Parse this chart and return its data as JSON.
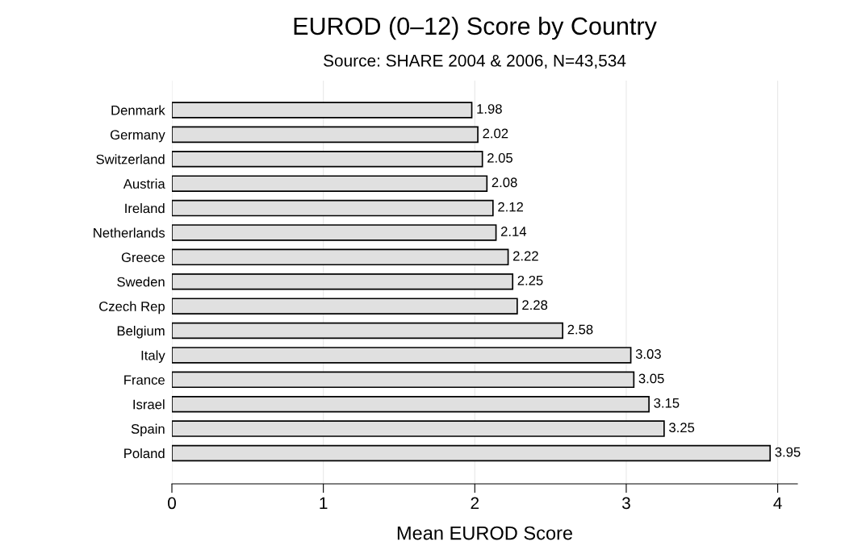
{
  "chart_data": {
    "type": "bar",
    "orientation": "horizontal",
    "title": "EUROD (0–12) Score by Country",
    "subtitle": "Source: SHARE 2004 & 2006, N=43,534",
    "xlabel": "Mean EUROD Score",
    "categories": [
      "Denmark",
      "Germany",
      "Switzerland",
      "Austria",
      "Ireland",
      "Netherlands",
      "Greece",
      "Sweden",
      "Czech Rep",
      "Belgium",
      "Italy",
      "France",
      "Israel",
      "Spain",
      "Poland"
    ],
    "values": [
      1.98,
      2.02,
      2.05,
      2.08,
      2.12,
      2.14,
      2.22,
      2.25,
      2.28,
      2.58,
      3.03,
      3.05,
      3.15,
      3.25,
      3.95
    ],
    "color": "#e0e0e0",
    "xlim": [
      0,
      4.13
    ],
    "xticks": [
      0,
      1,
      2,
      3,
      4
    ],
    "grid": "x",
    "data_labels": true,
    "legend": false
  }
}
